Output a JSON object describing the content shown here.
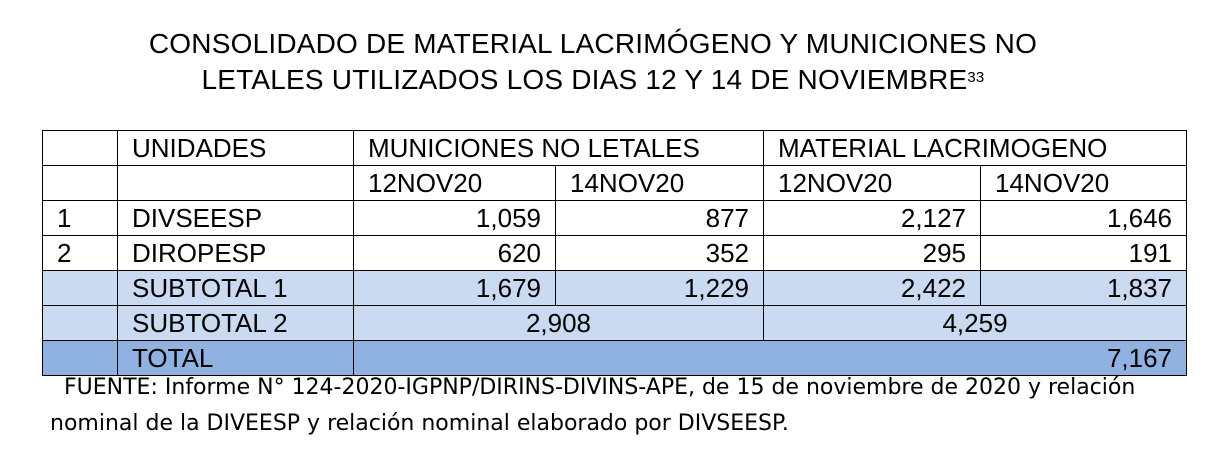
{
  "title": {
    "line1": "CONSOLIDADO DE MATERIAL LACRIMÓGENO Y MUNICIONES NO",
    "line2": "LETALES UTILIZADOS LOS DIAS 12 Y 14 DE NOVIEMBRE",
    "footnote": "33"
  },
  "table": {
    "headers": {
      "unidades": "UNIDADES",
      "municiones": "MUNICIONES NO LETALES",
      "material": "MATERIAL LACRIMOGENO",
      "dates": [
        "12NOV20",
        "14NOV20",
        "12NOV20",
        "14NOV20"
      ]
    },
    "rows": [
      {
        "idx": "1",
        "unit": "DIVSEESP",
        "values": [
          "1,059",
          "877",
          "2,127",
          "1,646"
        ]
      },
      {
        "idx": "2",
        "unit": "DIROPESP",
        "values": [
          "620",
          "352",
          "295",
          "191"
        ]
      }
    ],
    "subtotal1": {
      "label": "SUBTOTAL 1",
      "values": [
        "1,679",
        "1,229",
        "2,422",
        "1,837"
      ]
    },
    "subtotal2": {
      "label": "SUBTOTAL 2",
      "municiones": "2,908",
      "material": "4,259"
    },
    "total": {
      "label": "TOTAL",
      "value": "7,167"
    },
    "colors": {
      "subtotal": "#c9daf1",
      "total": "#8fb2e1"
    }
  },
  "source": "FUENTE: Informe N° 124-2020-IGPNP/DIRINS-DIVINS-APE, de 15 de noviembre de 2020 y relación nominal de la DIVEESP y relación nominal elaborado por DIVSEESP."
}
